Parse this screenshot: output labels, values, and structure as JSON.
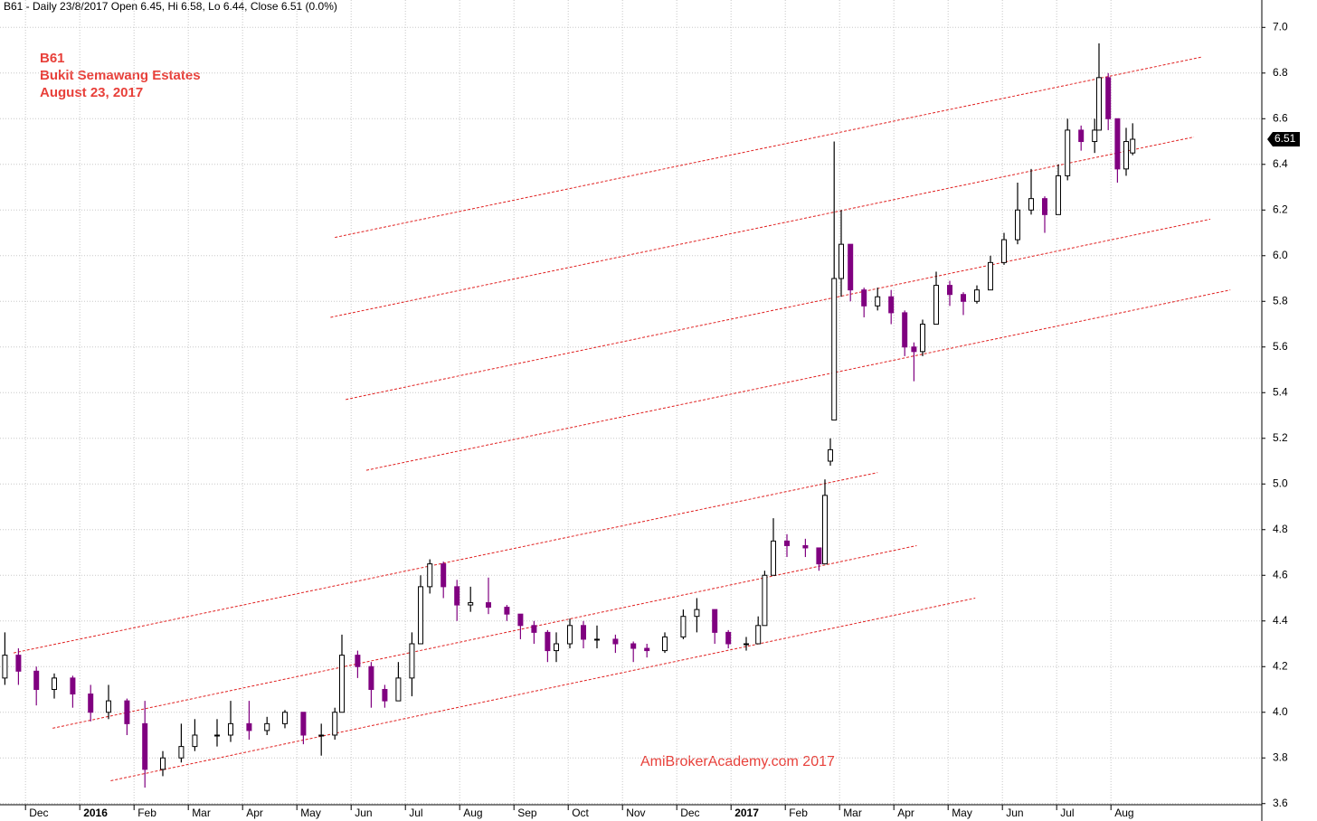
{
  "chart_data": {
    "type": "candlestick",
    "title": "B61 - Daily 23/8/2017 Open 6.45, Hi 6.58, Lo 6.44, Close 6.51 (0.0%)",
    "annotations": [
      "B61",
      "Bukit Semawang Estates",
      "August 23, 2017"
    ],
    "watermark": "AmiBrokerAcademy.com  2017",
    "x": [
      -0.38,
      -0.13,
      0.2,
      0.53,
      0.87,
      1.2,
      1.53,
      1.87,
      2.2,
      2.53,
      2.87,
      3.12,
      3.53,
      3.78,
      4.12,
      4.45,
      4.78,
      5.12,
      5.45,
      5.7,
      5.83,
      6.12,
      6.37,
      6.62,
      6.87,
      7.12,
      7.28,
      7.45,
      7.7,
      7.95,
      8.2,
      8.53,
      8.87,
      9.12,
      9.37,
      9.62,
      9.78,
      10.03,
      10.28,
      10.53,
      10.87,
      11.2,
      11.45,
      11.78,
      12.12,
      12.37,
      12.7,
      12.95,
      13.28,
      13.5,
      13.62,
      13.78,
      14.03,
      14.37,
      14.62,
      14.73,
      14.83,
      14.9,
      15.03,
      15.2,
      15.45,
      15.7,
      15.95,
      16.2,
      16.37,
      16.53,
      16.78,
      17.03,
      17.28,
      17.53,
      17.78,
      18.03,
      18.28,
      18.53,
      18.78,
      19.03,
      19.2,
      19.45,
      19.7,
      19.78,
      19.95,
      20.12,
      20.28,
      20.4
    ],
    "open": [
      4.15,
      4.25,
      4.18,
      4.1,
      4.15,
      4.08,
      4.0,
      4.05,
      3.95,
      3.75,
      3.8,
      3.85,
      3.9,
      3.9,
      3.95,
      3.92,
      3.95,
      4.0,
      3.9,
      3.9,
      4.0,
      4.25,
      4.2,
      4.1,
      4.05,
      4.15,
      4.3,
      4.55,
      4.65,
      4.55,
      4.47,
      4.48,
      4.46,
      4.43,
      4.38,
      4.35,
      4.27,
      4.3,
      4.38,
      4.32,
      4.32,
      4.3,
      4.28,
      4.27,
      4.33,
      4.42,
      4.45,
      4.35,
      4.3,
      4.3,
      4.38,
      4.6,
      4.75,
      4.73,
      4.72,
      4.65,
      5.1,
      5.28,
      5.9,
      6.05,
      5.85,
      5.78,
      5.82,
      5.75,
      5.6,
      5.58,
      5.7,
      5.87,
      5.83,
      5.8,
      5.85,
      5.97,
      6.07,
      6.2,
      6.25,
      6.18,
      6.35,
      6.55,
      6.5,
      6.55,
      6.78,
      6.6,
      6.38,
      6.45
    ],
    "high": [
      4.35,
      4.28,
      4.2,
      4.17,
      4.16,
      4.12,
      4.12,
      4.06,
      4.05,
      3.83,
      3.95,
      3.97,
      3.97,
      4.05,
      4.05,
      3.98,
      4.01,
      4.0,
      3.95,
      4.02,
      4.34,
      4.27,
      4.22,
      4.12,
      4.22,
      4.35,
      4.6,
      4.67,
      4.66,
      4.58,
      4.55,
      4.59,
      4.47,
      4.43,
      4.4,
      4.36,
      4.35,
      4.41,
      4.4,
      4.38,
      4.34,
      4.31,
      4.3,
      4.35,
      4.45,
      4.5,
      4.45,
      4.36,
      4.33,
      4.42,
      4.62,
      4.85,
      4.78,
      4.76,
      4.72,
      5.02,
      5.2,
      6.5,
      6.2,
      6.05,
      5.86,
      5.86,
      5.85,
      5.76,
      5.62,
      5.72,
      5.93,
      5.89,
      5.84,
      5.87,
      6.0,
      6.1,
      6.32,
      6.38,
      6.26,
      6.4,
      6.6,
      6.57,
      6.6,
      6.93,
      6.8,
      6.6,
      6.56,
      6.58
    ],
    "low": [
      4.12,
      4.12,
      4.03,
      4.06,
      4.02,
      3.96,
      3.97,
      3.9,
      3.67,
      3.72,
      3.78,
      3.83,
      3.85,
      3.87,
      3.88,
      3.9,
      3.93,
      3.86,
      3.81,
      3.88,
      4.0,
      4.15,
      4.02,
      4.02,
      4.05,
      4.07,
      4.3,
      4.52,
      4.5,
      4.4,
      4.44,
      4.43,
      4.4,
      4.32,
      4.3,
      4.22,
      4.22,
      4.28,
      4.28,
      4.28,
      4.26,
      4.22,
      4.24,
      4.26,
      4.32,
      4.35,
      4.3,
      4.28,
      4.27,
      4.3,
      4.38,
      4.6,
      4.68,
      4.68,
      4.62,
      4.65,
      5.08,
      5.28,
      5.82,
      5.8,
      5.73,
      5.76,
      5.7,
      5.56,
      5.45,
      5.56,
      5.7,
      5.78,
      5.74,
      5.79,
      5.85,
      5.96,
      6.05,
      6.18,
      6.1,
      6.18,
      6.33,
      6.46,
      6.45,
      6.55,
      6.55,
      6.32,
      6.35,
      6.44
    ],
    "close": [
      4.25,
      4.18,
      4.1,
      4.15,
      4.08,
      4.0,
      4.05,
      3.95,
      3.75,
      3.8,
      3.85,
      3.9,
      3.9,
      3.95,
      3.92,
      3.95,
      4.0,
      3.9,
      3.9,
      4.0,
      4.25,
      4.2,
      4.1,
      4.05,
      4.15,
      4.3,
      4.55,
      4.65,
      4.55,
      4.47,
      4.48,
      4.46,
      4.43,
      4.38,
      4.35,
      4.27,
      4.3,
      4.38,
      4.32,
      4.32,
      4.3,
      4.28,
      4.27,
      4.33,
      4.42,
      4.45,
      4.35,
      4.3,
      4.3,
      4.38,
      4.6,
      4.75,
      4.73,
      4.72,
      4.65,
      4.95,
      5.15,
      5.9,
      6.05,
      5.85,
      5.78,
      5.82,
      5.75,
      5.6,
      5.58,
      5.7,
      5.87,
      5.83,
      5.8,
      5.85,
      5.97,
      6.07,
      6.2,
      6.25,
      6.18,
      6.35,
      6.55,
      6.5,
      6.55,
      6.78,
      6.6,
      6.38,
      6.5,
      6.51
    ],
    "up_color": "#ffffff",
    "down_color": "#800080",
    "channel_color": "#e02020",
    "channels": [
      {
        "x": [
          5.7,
          21.67
        ],
        "y": [
          6.08,
          6.87
        ]
      },
      {
        "x": [
          5.62,
          21.53
        ],
        "y": [
          5.73,
          6.52
        ]
      },
      {
        "x": [
          5.9,
          21.83
        ],
        "y": [
          5.37,
          6.16
        ]
      },
      {
        "x": [
          6.28,
          22.2
        ],
        "y": [
          5.06,
          5.85
        ]
      },
      {
        "x": [
          -0.22,
          15.7
        ],
        "y": [
          4.26,
          5.05
        ]
      },
      {
        "x": [
          0.5,
          16.42
        ],
        "y": [
          3.93,
          4.73
        ]
      },
      {
        "x": [
          1.57,
          17.5
        ],
        "y": [
          3.7,
          4.5
        ]
      }
    ],
    "xlim": [
      -0.47,
      22.78
    ],
    "xticks": [
      {
        "value": 0,
        "label": "Dec"
      },
      {
        "value": 1,
        "label": "2016"
      },
      {
        "value": 2,
        "label": "Feb"
      },
      {
        "value": 3,
        "label": "Mar"
      },
      {
        "value": 4,
        "label": "Apr"
      },
      {
        "value": 5,
        "label": "May"
      },
      {
        "value": 6,
        "label": "Jun"
      },
      {
        "value": 7,
        "label": "Jul"
      },
      {
        "value": 8,
        "label": "Aug"
      },
      {
        "value": 9,
        "label": "Sep"
      },
      {
        "value": 10,
        "label": "Oct"
      },
      {
        "value": 11,
        "label": "Nov"
      },
      {
        "value": 12,
        "label": "Dec"
      },
      {
        "value": 13,
        "label": "2017"
      },
      {
        "value": 14,
        "label": "Feb"
      },
      {
        "value": 15,
        "label": "Mar"
      },
      {
        "value": 16,
        "label": "Apr"
      },
      {
        "value": 17,
        "label": "May"
      },
      {
        "value": 18,
        "label": "Jun"
      },
      {
        "value": 19,
        "label": "Jul"
      },
      {
        "value": 20,
        "label": "Aug"
      }
    ],
    "ylim": [
      3.595,
      7.12
    ],
    "yticks": [
      {
        "value": 3.6,
        "label": "3.6"
      },
      3.8,
      {
        "value": 4.0,
        "label": "4.0"
      },
      4.2,
      4.4,
      4.6,
      4.8,
      {
        "value": 5.0,
        "label": "5.0"
      },
      5.2,
      5.4,
      5.6,
      5.8,
      {
        "value": 6.0,
        "label": "6.0"
      },
      6.2,
      6.4,
      6.6,
      6.8,
      {
        "value": 7.0,
        "label": "7.0"
      }
    ],
    "grid": true
  }
}
